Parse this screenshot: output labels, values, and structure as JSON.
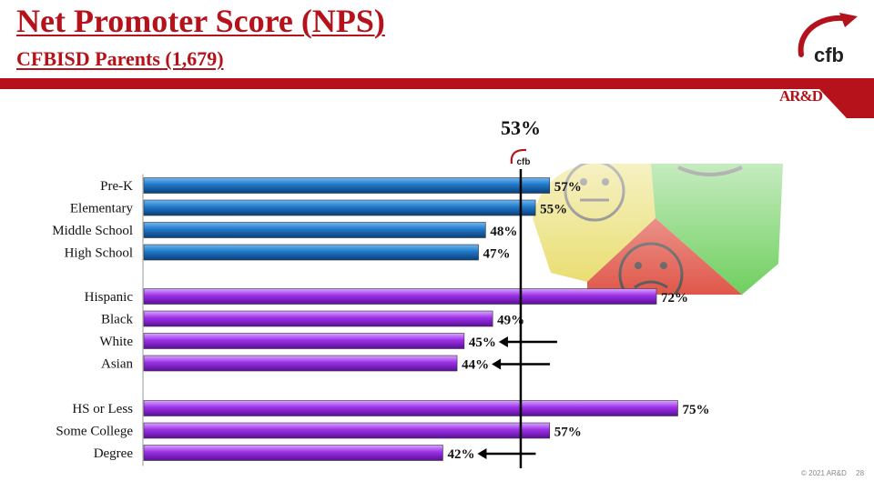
{
  "header": {
    "title": "Net Promoter Score (NPS)",
    "subtitle": "CFBISD Parents (1,679)",
    "logo_text": "cfb",
    "tag": "AR&D"
  },
  "footer": {
    "copyright": "© 2021 AR&D",
    "page_number": "28"
  },
  "colors": {
    "brand_red": "#b5121b",
    "school_level_bar": "#1f78c8",
    "demographic_bar": "#9b30e6",
    "benchmark_line": "#000000"
  },
  "chart_data": {
    "type": "bar",
    "orientation": "horizontal",
    "benchmark": {
      "value": 53,
      "label": "53%",
      "marker_text": "cfb"
    },
    "groups": [
      {
        "color_key": "school_level_bar",
        "items": [
          {
            "label": "Pre-K",
            "value": 57,
            "data_label": "57%",
            "arrow": false
          },
          {
            "label": "Elementary",
            "value": 55,
            "data_label": "55%",
            "arrow": false
          },
          {
            "label": "Middle School",
            "value": 48,
            "data_label": "48%",
            "arrow": false
          },
          {
            "label": "High School",
            "value": 47,
            "data_label": "47%",
            "arrow": false
          }
        ]
      },
      {
        "color_key": "demographic_bar",
        "items": [
          {
            "label": "Hispanic",
            "value": 72,
            "data_label": "72%",
            "arrow": false
          },
          {
            "label": "Black",
            "value": 49,
            "data_label": "49%",
            "arrow": false
          },
          {
            "label": "White",
            "value": 45,
            "data_label": "45%",
            "arrow": true
          },
          {
            "label": "Asian",
            "value": 44,
            "data_label": "44%",
            "arrow": true
          }
        ]
      },
      {
        "color_key": "demographic_bar",
        "items": [
          {
            "label": "HS or Less",
            "value": 75,
            "data_label": "75%",
            "arrow": false
          },
          {
            "label": "Some College",
            "value": 57,
            "data_label": "57%",
            "arrow": false
          },
          {
            "label": "Degree",
            "value": 42,
            "data_label": "42%",
            "arrow": true
          }
        ]
      }
    ],
    "xlim": [
      0,
      100
    ],
    "grid": false,
    "legend": "none"
  }
}
